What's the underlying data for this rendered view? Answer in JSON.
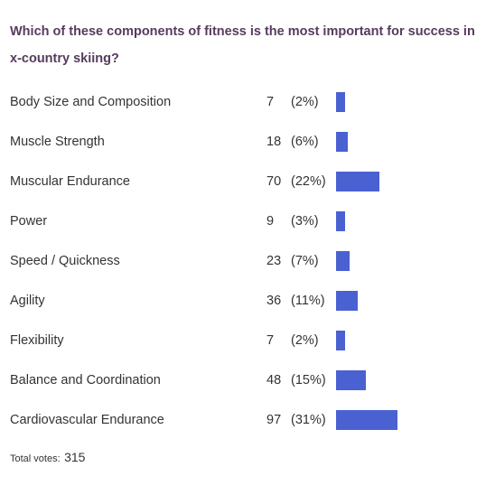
{
  "poll": {
    "question": "Which of these components of fitness is the most important for success in x-country skiing?",
    "bar_color": "#4a61d1",
    "total_label": "Total votes:",
    "total_value": "315"
  },
  "chart_data": {
    "type": "bar",
    "orientation": "horizontal",
    "title": "Which of these components of fitness is the most important for success in x-country skiing?",
    "categories": [
      "Body Size and Composition",
      "Muscle Strength",
      "Muscular Endurance",
      "Power",
      "Speed / Quickness",
      "Agility",
      "Flexibility",
      "Balance and Coordination",
      "Cardiovascular Endurance"
    ],
    "values": [
      7,
      18,
      70,
      9,
      23,
      36,
      7,
      48,
      97
    ],
    "percent_labels": [
      "(2%)",
      "(6%)",
      "(22%)",
      "(3%)",
      "(7%)",
      "(11%)",
      "(2%)",
      "(15%)",
      "(31%)"
    ],
    "percents": [
      2,
      6,
      22,
      3,
      7,
      11,
      2,
      15,
      31
    ],
    "total": 315
  }
}
